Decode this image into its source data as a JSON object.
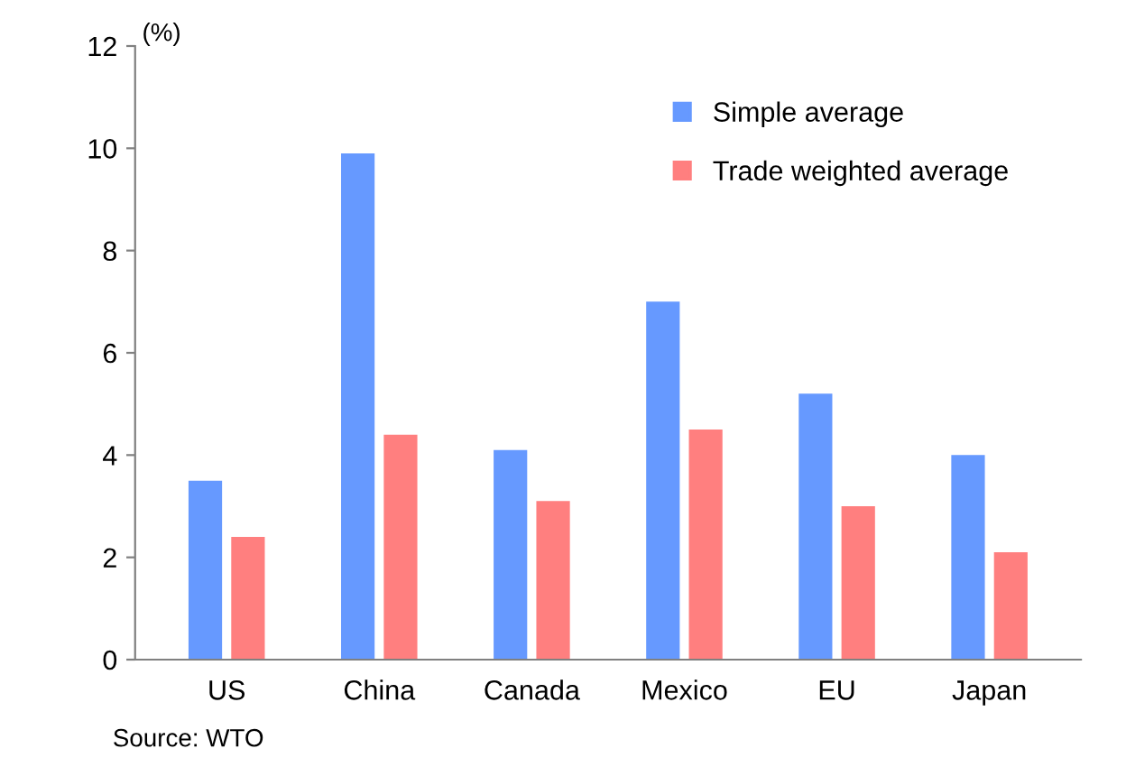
{
  "chart_data": {
    "type": "bar",
    "ylabel": "(%)",
    "categories": [
      "US",
      "China",
      "Canada",
      "Mexico",
      "EU",
      "Japan"
    ],
    "series": [
      {
        "name": "Simple average",
        "color": "#6699ff",
        "values": [
          3.5,
          9.9,
          4.1,
          7.0,
          5.2,
          4.0
        ]
      },
      {
        "name": "Trade weighted average",
        "color": "#ff7f7f",
        "values": [
          2.4,
          4.4,
          3.1,
          4.5,
          3.0,
          2.1
        ]
      }
    ],
    "ylim": [
      0,
      12
    ],
    "yticks": [
      0,
      2,
      4,
      6,
      8,
      10,
      12
    ],
    "grid": false,
    "legend": "top right",
    "annotations": [
      "Source: WTO"
    ]
  }
}
